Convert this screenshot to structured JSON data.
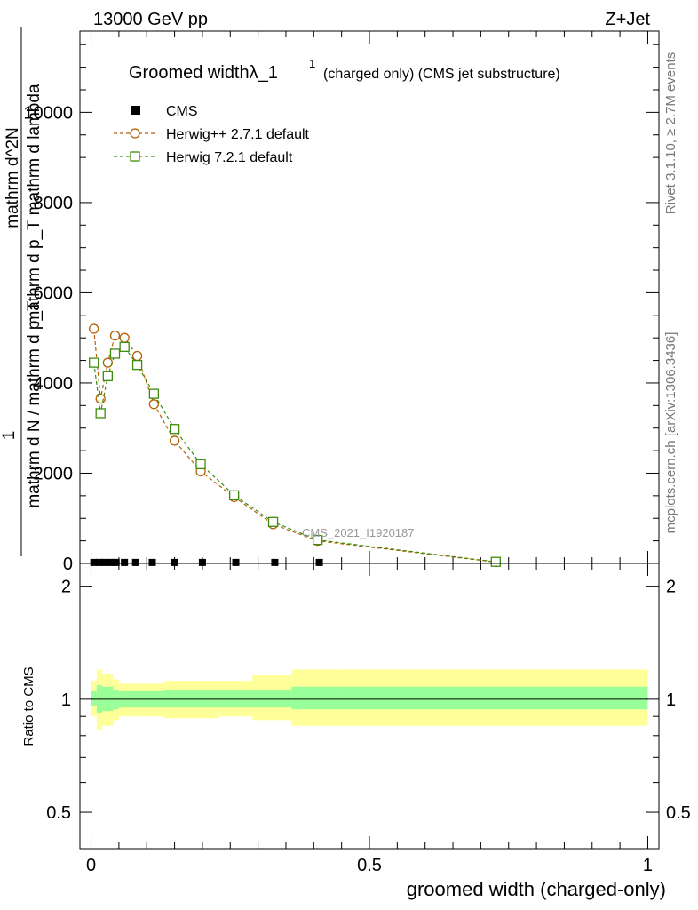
{
  "header": {
    "left": "13000 GeV pp",
    "right": "Z+Jet"
  },
  "side_labels": {
    "rivet": "Rivet 3.1.10, ≥ 2.7M events",
    "mcplots": "mcplots.cern.ch [arXiv:1306.3436]"
  },
  "chart_data": [
    {
      "panel": "main",
      "type": "line",
      "title": "Groomed widthλ_1",
      "title_sup": "1",
      "subtitle": "(charged only) (CMS jet substructure)",
      "analysis_label": "CMS_2021_I1920187",
      "ylabel_numerator": "mathrm d^2N",
      "ylabel_fraction_num": "1",
      "ylabel_fraction_den": "mathrm d N / mathrm d p_T",
      "ylabel_rest": "mathrm d p_T mathrm d lambda",
      "ylim": [
        0,
        11800
      ],
      "xlim": [
        -0.02,
        1.02
      ],
      "y_ticks": [
        0,
        2000,
        4000,
        6000,
        8000,
        10000
      ],
      "y_tick_labels": [
        "0",
        "2000",
        "4000",
        "6000",
        "8000",
        "10000"
      ],
      "legend_placement": "top-left",
      "series": [
        {
          "name": "CMS",
          "marker": "filled-square",
          "color": "#000000",
          "x": [
            0.005,
            0.015,
            0.025,
            0.035,
            0.045,
            0.06,
            0.08,
            0.11,
            0.15,
            0.2,
            0.26,
            0.33,
            0.41
          ],
          "y": [
            22,
            22,
            22,
            22,
            22,
            22,
            22,
            22,
            22,
            22,
            22,
            22,
            22
          ]
        },
        {
          "name": "Herwig++ 2.7.1 default",
          "marker": "open-circle",
          "color": "#b45f06",
          "x": [
            0.005,
            0.017,
            0.03,
            0.043,
            0.06,
            0.083,
            0.113,
            0.15,
            0.197,
            0.257,
            0.327,
            0.407,
            0.727
          ],
          "y": [
            5200,
            3650,
            4450,
            5050,
            5000,
            4600,
            3530,
            2720,
            2040,
            1470,
            870,
            500,
            30
          ]
        },
        {
          "name": "Herwig 7.2.1 default",
          "marker": "open-square",
          "color": "#3c8d0d",
          "x": [
            0.005,
            0.017,
            0.03,
            0.043,
            0.06,
            0.083,
            0.113,
            0.15,
            0.197,
            0.257,
            0.327,
            0.407,
            0.727
          ],
          "y": [
            4450,
            3330,
            4150,
            4650,
            4800,
            4400,
            3760,
            2980,
            2200,
            1510,
            920,
            520,
            35
          ]
        }
      ]
    },
    {
      "panel": "ratio",
      "type": "area",
      "ylabel": "Ratio to CMS",
      "xlabel": "groomed width (charged-only)",
      "ylim": [
        0.4,
        2.3
      ],
      "y_scale": "log",
      "y_ticks": [
        0.5,
        1,
        2
      ],
      "y_tick_labels": [
        "0.5",
        "1",
        "2"
      ],
      "x_ticks": [
        0,
        0.5,
        1
      ],
      "x_tick_labels": [
        "0",
        "0.5",
        "1"
      ],
      "colors": {
        "inner_band": "#99ff99",
        "outer_band": "#ffff99",
        "line": "#000000"
      },
      "bins": [
        0,
        0.01,
        0.02,
        0.04,
        0.05,
        0.07,
        0.1,
        0.13,
        0.17,
        0.23,
        0.29,
        0.36,
        0.45,
        1.0
      ],
      "inner_low": [
        0.96,
        0.92,
        0.93,
        0.94,
        0.95,
        0.95,
        0.95,
        0.95,
        0.95,
        0.95,
        0.95,
        0.94,
        0.94
      ],
      "inner_high": [
        1.05,
        1.09,
        1.08,
        1.06,
        1.05,
        1.05,
        1.05,
        1.06,
        1.06,
        1.06,
        1.06,
        1.08,
        1.08
      ],
      "outer_low": [
        0.9,
        0.83,
        0.85,
        0.88,
        0.9,
        0.9,
        0.9,
        0.89,
        0.89,
        0.9,
        0.88,
        0.85,
        0.85
      ],
      "outer_high": [
        1.12,
        1.2,
        1.17,
        1.13,
        1.1,
        1.1,
        1.1,
        1.12,
        1.12,
        1.12,
        1.16,
        1.2,
        1.2
      ]
    }
  ]
}
